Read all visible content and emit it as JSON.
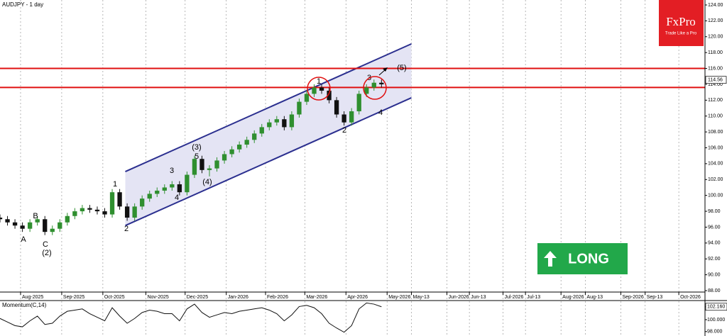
{
  "chart_data": [
    {
      "type": "candlestick",
      "title": "AUDJPY - 1 day",
      "x": [
        0,
        4,
        8,
        12,
        16,
        20,
        24,
        28,
        32,
        36,
        40,
        44,
        48,
        52,
        56,
        60,
        64,
        68,
        72,
        76,
        80,
        84,
        88,
        92,
        96,
        100,
        104,
        108,
        112,
        116,
        120,
        124,
        128,
        132,
        136,
        140,
        144,
        148,
        152,
        156,
        160,
        164,
        168,
        172,
        176,
        180,
        184,
        188,
        192,
        196,
        200,
        204
      ],
      "open": [
        97.2,
        97.0,
        96.6,
        96.2,
        95.8,
        96.6,
        97.0,
        95.4,
        95.8,
        96.6,
        97.4,
        98.0,
        98.4,
        98.2,
        98.0,
        97.6,
        100.4,
        98.6,
        97.2,
        98.6,
        99.6,
        100.2,
        100.6,
        101.0,
        101.4,
        100.4,
        102.6,
        104.6,
        103.2,
        103.4,
        104.4,
        105.2,
        105.8,
        106.4,
        107.0,
        107.8,
        108.6,
        109.2,
        109.6,
        108.6,
        110.2,
        111.8,
        112.8,
        113.6,
        113.2,
        112.0,
        110.2,
        109.2,
        110.6,
        112.8,
        113.6,
        114.2
      ],
      "high": [
        97.6,
        97.4,
        97.0,
        96.6,
        97.0,
        97.4,
        97.4,
        96.2,
        97.0,
        97.8,
        98.4,
        98.8,
        98.8,
        98.6,
        98.4,
        100.8,
        100.8,
        99.0,
        99.0,
        100.0,
        100.6,
        101.0,
        101.4,
        101.8,
        101.8,
        103.0,
        105.0,
        105.0,
        103.8,
        104.8,
        105.6,
        106.2,
        106.8,
        107.4,
        108.2,
        109.0,
        109.6,
        110.0,
        110.0,
        110.6,
        112.2,
        113.2,
        114.0,
        114.0,
        113.6,
        112.4,
        110.6,
        111.0,
        113.2,
        114.0,
        114.6,
        114.6
      ],
      "low": [
        96.6,
        96.2,
        95.8,
        95.4,
        95.4,
        96.2,
        95.0,
        95.0,
        95.4,
        96.2,
        97.0,
        97.6,
        97.8,
        97.6,
        97.2,
        97.2,
        98.2,
        96.8,
        96.8,
        98.2,
        99.2,
        99.8,
        100.2,
        100.6,
        100.0,
        100.0,
        102.2,
        102.8,
        102.4,
        103.0,
        104.0,
        104.8,
        105.4,
        106.0,
        106.6,
        107.4,
        108.2,
        108.8,
        108.2,
        108.2,
        109.8,
        111.4,
        112.4,
        112.8,
        111.6,
        109.8,
        108.8,
        108.8,
        110.2,
        112.4,
        113.2,
        113.6
      ],
      "close": [
        97.0,
        96.6,
        96.2,
        95.8,
        96.6,
        97.0,
        95.4,
        95.8,
        96.6,
        97.4,
        98.0,
        98.4,
        98.2,
        98.0,
        97.6,
        100.4,
        98.6,
        97.2,
        98.6,
        99.6,
        100.2,
        100.6,
        101.0,
        101.4,
        100.4,
        102.6,
        104.6,
        103.2,
        103.4,
        104.4,
        105.2,
        105.8,
        106.4,
        107.0,
        107.8,
        108.6,
        109.2,
        109.6,
        108.6,
        110.2,
        111.8,
        112.8,
        113.6,
        113.2,
        112.0,
        110.2,
        109.2,
        110.6,
        112.8,
        113.6,
        114.2,
        114.0
      ],
      "color_up": "#2f8f2f",
      "color_down": "#111111",
      "xlim": [
        0,
        377
      ],
      "ylim": [
        88,
        124
      ],
      "xticks": [
        {
          "value": 11,
          "label": "Aug-2025"
        },
        {
          "value": 33,
          "label": "Sep-2025"
        },
        {
          "value": 55,
          "label": "Oct-2025"
        },
        {
          "value": 78,
          "label": "Nov-2025"
        },
        {
          "value": 99,
          "label": "Dec-2025"
        },
        {
          "value": 121,
          "label": "Jan-2026"
        },
        {
          "value": 142,
          "label": "Feb-2026"
        },
        {
          "value": 163,
          "label": "Mar-2026"
        },
        {
          "value": 185,
          "label": "Apr-2026"
        },
        {
          "value": 207,
          "label": "May-2026"
        },
        {
          "value": 220,
          "label": "May-13"
        },
        {
          "value": 239,
          "label": "Jun-2026"
        },
        {
          "value": 251,
          "label": "Jun-13"
        },
        {
          "value": 269,
          "label": "Jul-2026"
        },
        {
          "value": 281,
          "label": "Jul-13"
        },
        {
          "value": 300,
          "label": "Aug-2026"
        },
        {
          "value": 313,
          "label": "Aug-13"
        },
        {
          "value": 332,
          "label": "Sep-2026"
        },
        {
          "value": 345,
          "label": "Sep-13"
        },
        {
          "value": 363,
          "label": "Oct-2026"
        }
      ],
      "yticks": [
        {
          "value": 88,
          "label": "88.00"
        },
        {
          "value": 90,
          "label": "90.00"
        },
        {
          "value": 92,
          "label": "92.00"
        },
        {
          "value": 94,
          "label": "94.00"
        },
        {
          "value": 96,
          "label": "96.00"
        },
        {
          "value": 98,
          "label": "98.00"
        },
        {
          "value": 100,
          "label": "100.00"
        },
        {
          "value": 102,
          "label": "102.00"
        },
        {
          "value": 104,
          "label": "104.00"
        },
        {
          "value": 106,
          "label": "106.00"
        },
        {
          "value": 108,
          "label": "108.00"
        },
        {
          "value": 110,
          "label": "110.00"
        },
        {
          "value": 112,
          "label": "112.00"
        },
        {
          "value": 114,
          "label": "114.00"
        },
        {
          "value": 116,
          "label": "116.00"
        },
        {
          "value": 118,
          "label": "118.00"
        },
        {
          "value": 120,
          "label": "120.00"
        },
        {
          "value": 122,
          "label": "122.00"
        },
        {
          "value": 124,
          "label": "124.00"
        }
      ],
      "grid": "x",
      "last_price": 114.56,
      "horizontal_lines": [
        {
          "value": 116.0,
          "color": "#e01010"
        },
        {
          "value": 113.6,
          "color": "#e01010"
        }
      ],
      "channel": {
        "color": "#2b2f8f",
        "fill": "#e4e4f4",
        "upper": [
          [
            67,
            103.0
          ],
          [
            220,
            119.1
          ]
        ],
        "lower": [
          [
            67,
            96.2
          ],
          [
            220,
            112.3
          ]
        ]
      },
      "annotations": [
        "A",
        "B",
        "C",
        "(2)",
        "1",
        "2",
        "3",
        "4",
        "(3)",
        "5",
        "(4)",
        "1",
        "2",
        "3",
        "4",
        "(5)"
      ]
    },
    {
      "type": "line",
      "title": "Momentum(C,14)",
      "color": "#111111",
      "x": [
        0,
        4,
        8,
        12,
        16,
        20,
        24,
        28,
        32,
        36,
        40,
        44,
        48,
        52,
        56,
        60,
        64,
        68,
        72,
        76,
        80,
        84,
        88,
        92,
        96,
        100,
        104,
        108,
        112,
        116,
        120,
        124,
        128,
        132,
        136,
        140,
        144,
        148,
        152,
        156,
        160,
        164,
        168,
        172,
        176,
        180,
        184,
        188,
        192,
        196,
        200,
        204
      ],
      "values": [
        100.2,
        99.6,
        99.0,
        98.8,
        99.8,
        100.6,
        99.2,
        99.4,
        100.6,
        101.4,
        101.6,
        101.8,
        101.0,
        100.4,
        99.8,
        102.0,
        100.6,
        99.4,
        100.2,
        101.2,
        101.6,
        101.4,
        101.0,
        101.0,
        99.8,
        101.8,
        102.6,
        101.2,
        100.4,
        100.8,
        101.2,
        101.0,
        101.4,
        101.6,
        101.8,
        102.0,
        101.6,
        101.0,
        99.8,
        100.8,
        102.2,
        102.4,
        102.0,
        101.0,
        99.4,
        98.6,
        97.9,
        99.0,
        101.8,
        102.8,
        102.6,
        102.16
      ],
      "xlim": [
        0,
        377
      ],
      "ylim": [
        97.5,
        103.2
      ],
      "yticks": [
        {
          "value": 102.16,
          "label": "102.160"
        },
        {
          "value": 100,
          "label": "100.000"
        },
        {
          "value": 98,
          "label": "98.000"
        }
      ]
    }
  ],
  "logo": {
    "name": "FxPro",
    "tagline": "Trade Like a Pro"
  },
  "signal": "LONG"
}
